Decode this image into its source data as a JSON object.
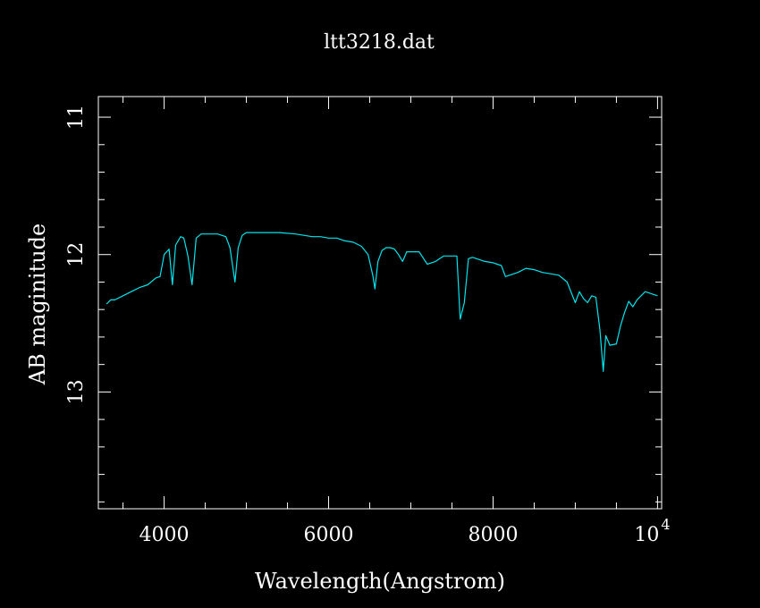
{
  "chart_data": {
    "type": "line",
    "title": "ltt3218.dat",
    "xlabel": "Wavelength(Angstrom)",
    "ylabel": "AB maginitude",
    "xlim": [
      3200,
      10050
    ],
    "ylim": [
      13.85,
      10.85
    ],
    "y_inverted": true,
    "x_tick_labels": [
      {
        "value": 4000,
        "label": "4000"
      },
      {
        "value": 6000,
        "label": "6000"
      },
      {
        "value": 8000,
        "label": "8000"
      }
    ],
    "x_tick_last": {
      "value": 10000,
      "base": "10",
      "exponent": "4"
    },
    "y_tick_labels": [
      {
        "value": 11,
        "label": "11"
      },
      {
        "value": 12,
        "label": "12"
      },
      {
        "value": 13,
        "label": "13"
      }
    ],
    "x_minor_step": 500,
    "y_minor_step": 0.2,
    "grid": false,
    "colors": {
      "background": "#000000",
      "axes": "#ffffff",
      "series": "#00e5ee"
    },
    "series": [
      {
        "x": [
          3300,
          3350,
          3400,
          3500,
          3600,
          3700,
          3800,
          3900,
          3950,
          4000,
          4060,
          4100,
          4140,
          4200,
          4240,
          4290,
          4340,
          4390,
          4450,
          4550,
          4650,
          4750,
          4800,
          4861,
          4900,
          4950,
          5000,
          5200,
          5400,
          5600,
          5700,
          5800,
          5900,
          6000,
          6100,
          6200,
          6300,
          6400,
          6480,
          6540,
          6563,
          6600,
          6650,
          6700,
          6750,
          6800,
          6850,
          6900,
          6950,
          7000,
          7100,
          7200,
          7300,
          7400,
          7450,
          7500,
          7560,
          7600,
          7650,
          7700,
          7750,
          7800,
          7900,
          8000,
          8050,
          8100,
          8150,
          8200,
          8300,
          8400,
          8500,
          8600,
          8700,
          8800,
          8900,
          9000,
          9050,
          9100,
          9150,
          9200,
          9250,
          9300,
          9340,
          9370,
          9420,
          9500,
          9550,
          9600,
          9650,
          9700,
          9750,
          9800,
          9850,
          9900,
          9950,
          10000
        ],
        "y": [
          12.36,
          12.33,
          12.33,
          12.3,
          12.27,
          12.24,
          12.22,
          12.17,
          12.16,
          12.0,
          11.96,
          12.22,
          11.93,
          11.87,
          11.88,
          12.01,
          12.22,
          11.88,
          11.85,
          11.85,
          11.85,
          11.87,
          11.95,
          12.2,
          11.95,
          11.86,
          11.84,
          11.84,
          11.84,
          11.85,
          11.86,
          11.87,
          11.87,
          11.88,
          11.88,
          11.9,
          11.91,
          11.94,
          12.0,
          12.16,
          12.25,
          12.05,
          11.97,
          11.95,
          11.95,
          11.96,
          12.0,
          12.05,
          11.98,
          11.98,
          11.98,
          12.07,
          12.05,
          12.01,
          12.01,
          12.01,
          12.01,
          12.47,
          12.35,
          12.03,
          12.02,
          12.03,
          12.05,
          12.06,
          12.07,
          12.08,
          12.16,
          12.15,
          12.13,
          12.1,
          12.11,
          12.13,
          12.14,
          12.15,
          12.2,
          12.35,
          12.27,
          12.32,
          12.35,
          12.3,
          12.31,
          12.55,
          12.85,
          12.59,
          12.66,
          12.65,
          12.52,
          12.42,
          12.34,
          12.38,
          12.33,
          12.3,
          12.27,
          12.28,
          12.29,
          12.3
        ]
      }
    ]
  }
}
